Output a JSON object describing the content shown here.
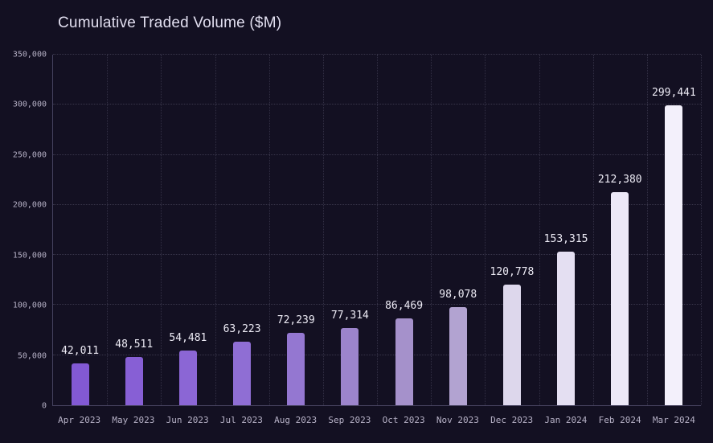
{
  "title": "Cumulative Traded Volume ($M)",
  "colors": {
    "background": "#131022",
    "axis": "#46425f",
    "grid": "rgba(195,190,225,0.2)",
    "tick_label": "#b6b1c6",
    "value_label": "#edebf5",
    "title": "#e2dff0"
  },
  "chart_data": {
    "type": "bar",
    "title": "Cumulative Traded Volume ($M)",
    "xlabel": "",
    "ylabel": "",
    "ylim": [
      0,
      350000
    ],
    "grid": true,
    "legend": false,
    "categories": [
      "Apr 2023",
      "May 2023",
      "Jun 2023",
      "Jul 2023",
      "Aug 2023",
      "Sep 2023",
      "Oct 2023",
      "Nov 2023",
      "Dec 2023",
      "Jan 2024",
      "Feb 2024",
      "Mar 2024"
    ],
    "values": [
      42011,
      48511,
      54481,
      63223,
      72239,
      77314,
      86469,
      98078,
      120778,
      153315,
      212380,
      299441
    ],
    "value_labels": [
      "42,011",
      "48,511",
      "54,481",
      "63,223",
      "72,239",
      "77,314",
      "86,469",
      "98,078",
      "120,778",
      "153,315",
      "212,380",
      "299,441"
    ],
    "bar_colors": [
      "#8259d4",
      "#875fd5",
      "#8b66d5",
      "#8f6ed4",
      "#9477d1",
      "#9c84cc",
      "#a591cb",
      "#b2a3d1",
      "#ddd7ec",
      "#e4dff2",
      "#ece8f7",
      "#f3f0fb"
    ],
    "yticks": [
      0,
      50000,
      100000,
      150000,
      200000,
      250000,
      300000,
      350000
    ],
    "ytick_labels": [
      "0",
      "50,000",
      "100,000",
      "150,000",
      "200,000",
      "250,000",
      "300,000",
      "350,000"
    ]
  }
}
